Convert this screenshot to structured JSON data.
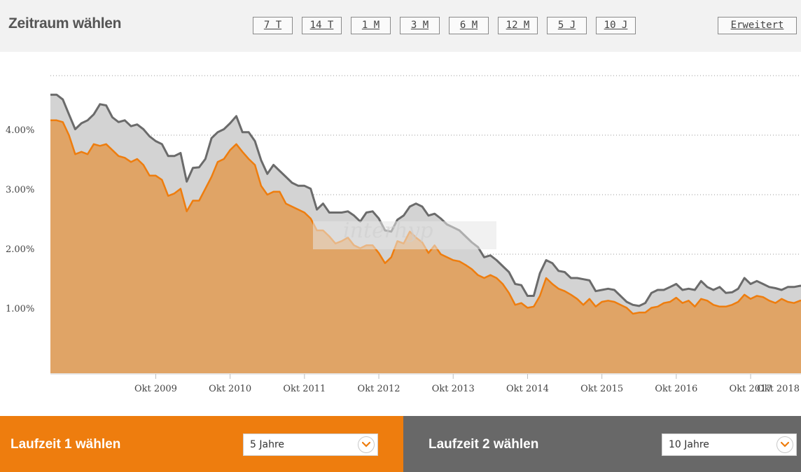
{
  "header": {
    "title": "Zeitraum wählen",
    "ranges": [
      "7 T",
      "14 T",
      "1 M",
      "3 M",
      "6 M",
      "12 M",
      "5 J",
      "10 J"
    ],
    "advanced_label": "Erweitert"
  },
  "footer": {
    "term1_label": "Laufzeit 1 wählen",
    "term1_value": "5 Jahre",
    "term2_label": "Laufzeit 2 wählen",
    "term2_value": "10 Jahre",
    "icon_term1": "chevron-down-icon",
    "icon_term2": "chevron-down-icon"
  },
  "watermark": "interhyp",
  "colors": {
    "term1": "#ee7d0e",
    "term1_fill": "#e0a466",
    "term2": "#6b6b6b",
    "term2_fill": "#d3d3d3",
    "footer_left": "#ee7d0e",
    "footer_right": "#686868"
  },
  "chart_data": {
    "type": "area",
    "ylim": [
      0,
      5
    ],
    "yticks": [
      "1.00%",
      "2.00%",
      "3.00%",
      "4.00%"
    ],
    "ytick_values": [
      1,
      2,
      3,
      4
    ],
    "xticks": [
      "Okt 2009",
      "Okt 2010",
      "Okt 2011",
      "Okt 2012",
      "Okt 2013",
      "Okt 2014",
      "Okt 2015",
      "Okt 2016",
      "Okt 2017",
      "Okt 2018"
    ],
    "x_start": "2008-05",
    "x_step": "1 month",
    "grid": "horizontal dotted",
    "series": [
      {
        "values": [
          4.68,
          4.68,
          4.6,
          4.35,
          4.1,
          4.2,
          4.25,
          4.35,
          4.52,
          4.5,
          4.3,
          4.22,
          4.25,
          4.15,
          4.18,
          4.1,
          3.98,
          3.9,
          3.85,
          3.65,
          3.65,
          3.7,
          3.22,
          3.45,
          3.46,
          3.6,
          3.95,
          4.05,
          4.1,
          4.2,
          4.32,
          4.05,
          4.05,
          3.9,
          3.58,
          3.35,
          3.5,
          3.4,
          3.3,
          3.2,
          3.15,
          3.15,
          3.1,
          2.75,
          2.85,
          2.7,
          2.7,
          2.7,
          2.72,
          2.65,
          2.55,
          2.7,
          2.72,
          2.6,
          2.4,
          2.38,
          2.58,
          2.65,
          2.8,
          2.85,
          2.8,
          2.65,
          2.68,
          2.6,
          2.5,
          2.45,
          2.4,
          2.3,
          2.2,
          2.12,
          1.95,
          1.98,
          1.9,
          1.8,
          1.7,
          1.5,
          1.48,
          1.3,
          1.3,
          1.68,
          1.9,
          1.85,
          1.72,
          1.7,
          1.6,
          1.6,
          1.58,
          1.56,
          1.38,
          1.4,
          1.42,
          1.4,
          1.3,
          1.2,
          1.15,
          1.13,
          1.18,
          1.35,
          1.4,
          1.4,
          1.45,
          1.5,
          1.4,
          1.42,
          1.4,
          1.55,
          1.45,
          1.4,
          1.45,
          1.35,
          1.36,
          1.42,
          1.6,
          1.5,
          1.55,
          1.5,
          1.45,
          1.43,
          1.4,
          1.45,
          1.45,
          1.47,
          1.47
        ]
      },
      {
        "values": [
          4.25,
          4.25,
          4.22,
          4.0,
          3.68,
          3.72,
          3.68,
          3.85,
          3.82,
          3.85,
          3.75,
          3.65,
          3.62,
          3.55,
          3.6,
          3.5,
          3.32,
          3.32,
          3.25,
          2.98,
          3.02,
          3.1,
          2.72,
          2.9,
          2.9,
          3.1,
          3.3,
          3.55,
          3.6,
          3.75,
          3.85,
          3.72,
          3.6,
          3.5,
          3.15,
          3.0,
          3.05,
          3.05,
          2.85,
          2.8,
          2.75,
          2.7,
          2.6,
          2.4,
          2.4,
          2.3,
          2.18,
          2.22,
          2.28,
          2.15,
          2.1,
          2.15,
          2.15,
          2.02,
          1.85,
          1.95,
          2.22,
          2.18,
          2.38,
          2.28,
          2.2,
          2.02,
          2.15,
          2.0,
          1.95,
          1.9,
          1.88,
          1.82,
          1.75,
          1.65,
          1.6,
          1.65,
          1.6,
          1.5,
          1.35,
          1.15,
          1.18,
          1.1,
          1.12,
          1.3,
          1.6,
          1.5,
          1.42,
          1.38,
          1.32,
          1.25,
          1.15,
          1.25,
          1.12,
          1.2,
          1.22,
          1.2,
          1.15,
          1.1,
          1.0,
          1.02,
          1.02,
          1.1,
          1.12,
          1.18,
          1.2,
          1.27,
          1.18,
          1.22,
          1.12,
          1.25,
          1.22,
          1.15,
          1.12,
          1.12,
          1.15,
          1.2,
          1.32,
          1.25,
          1.3,
          1.28,
          1.22,
          1.18,
          1.25,
          1.2,
          1.18,
          1.22,
          1.22
        ]
      }
    ]
  }
}
